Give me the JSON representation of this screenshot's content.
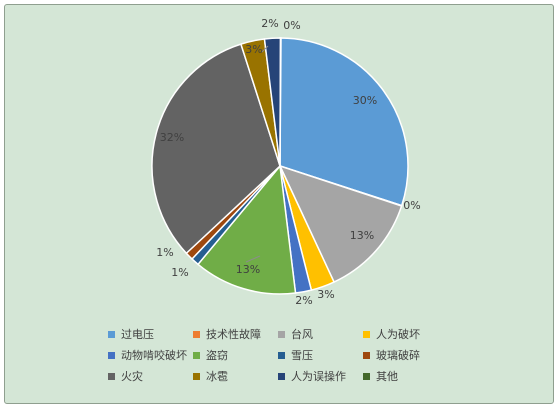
{
  "chart_data": {
    "type": "pie",
    "title": "",
    "categories": [
      "过电压",
      "技术性故障",
      "台风",
      "人为破坏",
      "动物啃咬破坏",
      "盗窃",
      "雪压",
      "玻璃破碎",
      "火灾",
      "冰雹",
      "人为误操作",
      "其他"
    ],
    "values": [
      30,
      0,
      13,
      3,
      2,
      13,
      1,
      1,
      32,
      3,
      2,
      0
    ],
    "labels": [
      "30%",
      "0%",
      "13%",
      "3%",
      "2%",
      "13%",
      "1%",
      "1%",
      "32%",
      "3%",
      "2%",
      "0%"
    ],
    "colors": [
      "#5b9bd5",
      "#ed7d31",
      "#a5a5a5",
      "#ffc000",
      "#4472c4",
      "#70ad47",
      "#255e91",
      "#9e480e",
      "#636363",
      "#997300",
      "#264478",
      "#43682b"
    ],
    "legend_position": "bottom"
  }
}
